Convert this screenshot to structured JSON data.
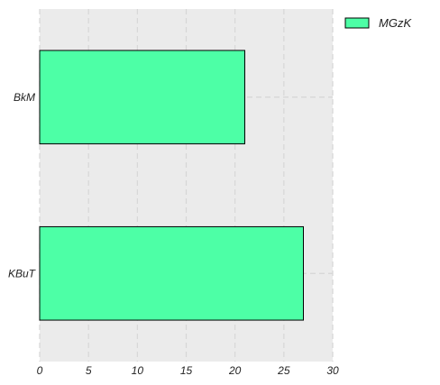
{
  "chart_data": {
    "type": "bar",
    "orientation": "horizontal",
    "categories": [
      "BkM",
      "KBuT"
    ],
    "series": [
      {
        "name": "MGzK",
        "values": [
          21,
          27
        ]
      }
    ],
    "xlim": [
      0,
      30
    ],
    "xticks": [
      "0",
      "5",
      "10",
      "15",
      "20",
      "25",
      "30"
    ],
    "grid": true,
    "legend": "top-right",
    "colors": {
      "bar": "#4dffa6",
      "bar_edge": "#000000",
      "plot_bg": "#ebebeb",
      "grid": "#d6d6d6"
    }
  }
}
